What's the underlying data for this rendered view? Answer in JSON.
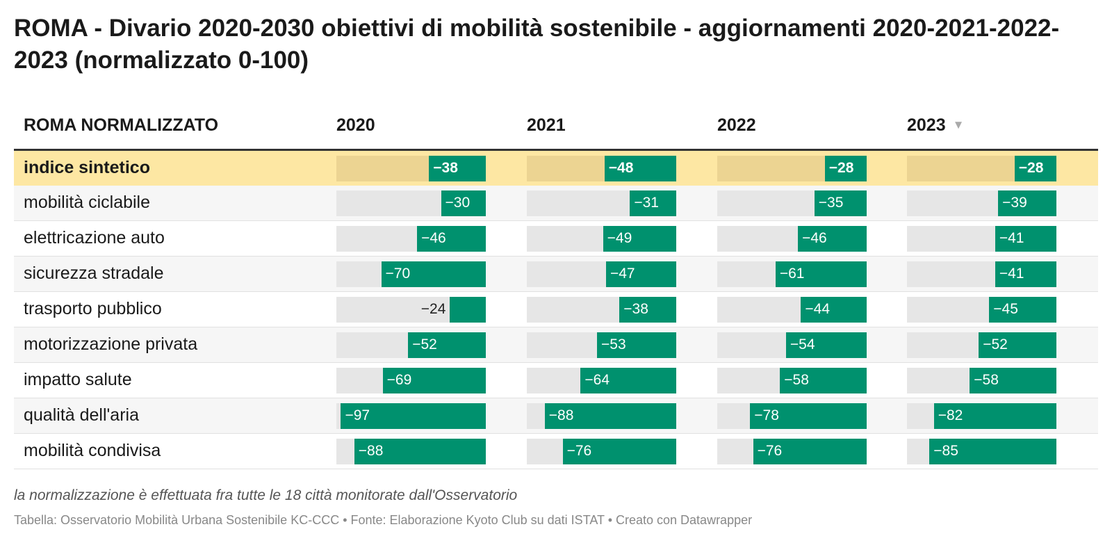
{
  "title": "ROMA - Divario 2020-2030 obiettivi di mobilità sostenibile - aggiornamenti 2020-2021-2022-2023 (normalizzato 0-100)",
  "chart_data": {
    "type": "table",
    "row_header": "ROMA NORMALIZZATO",
    "columns": [
      "2020",
      "2021",
      "2022",
      "2023"
    ],
    "sorted_column": "2023",
    "scale": [
      -100,
      0
    ],
    "colors": {
      "bar": "#00916e",
      "bar_background": "#e6e6e6",
      "highlight_row": "#fde7a3"
    },
    "rows": [
      {
        "label": "indice sintetico",
        "highlight": true,
        "values": [
          -38,
          -48,
          -28,
          -28
        ]
      },
      {
        "label": "mobilità ciclabile",
        "values": [
          -30,
          -31,
          -35,
          -39
        ]
      },
      {
        "label": "elettricazione auto",
        "values": [
          -46,
          -49,
          -46,
          -41
        ]
      },
      {
        "label": "sicurezza stradale",
        "values": [
          -70,
          -47,
          -61,
          -41
        ]
      },
      {
        "label": "trasporto pubblico",
        "values": [
          -24,
          -38,
          -44,
          -45
        ]
      },
      {
        "label": "motorizzazione privata",
        "values": [
          -52,
          -53,
          -54,
          -52
        ]
      },
      {
        "label": "impatto salute",
        "values": [
          -69,
          -64,
          -58,
          -58
        ]
      },
      {
        "label": "qualità dell'aria",
        "values": [
          -97,
          -88,
          -78,
          -82
        ]
      },
      {
        "label": "mobilità condivisa",
        "values": [
          -88,
          -76,
          -76,
          -85
        ]
      }
    ]
  },
  "note": "la normalizzazione è effettuata fra tutte le 18 città monitorate dall'Osservatorio",
  "credits": "Tabella: Osservatorio Mobilità Urbana Sostenibile KC-CCC • Fonte: Elaborazione Kyoto Club su dati ISTAT • Creato con Datawrapper"
}
